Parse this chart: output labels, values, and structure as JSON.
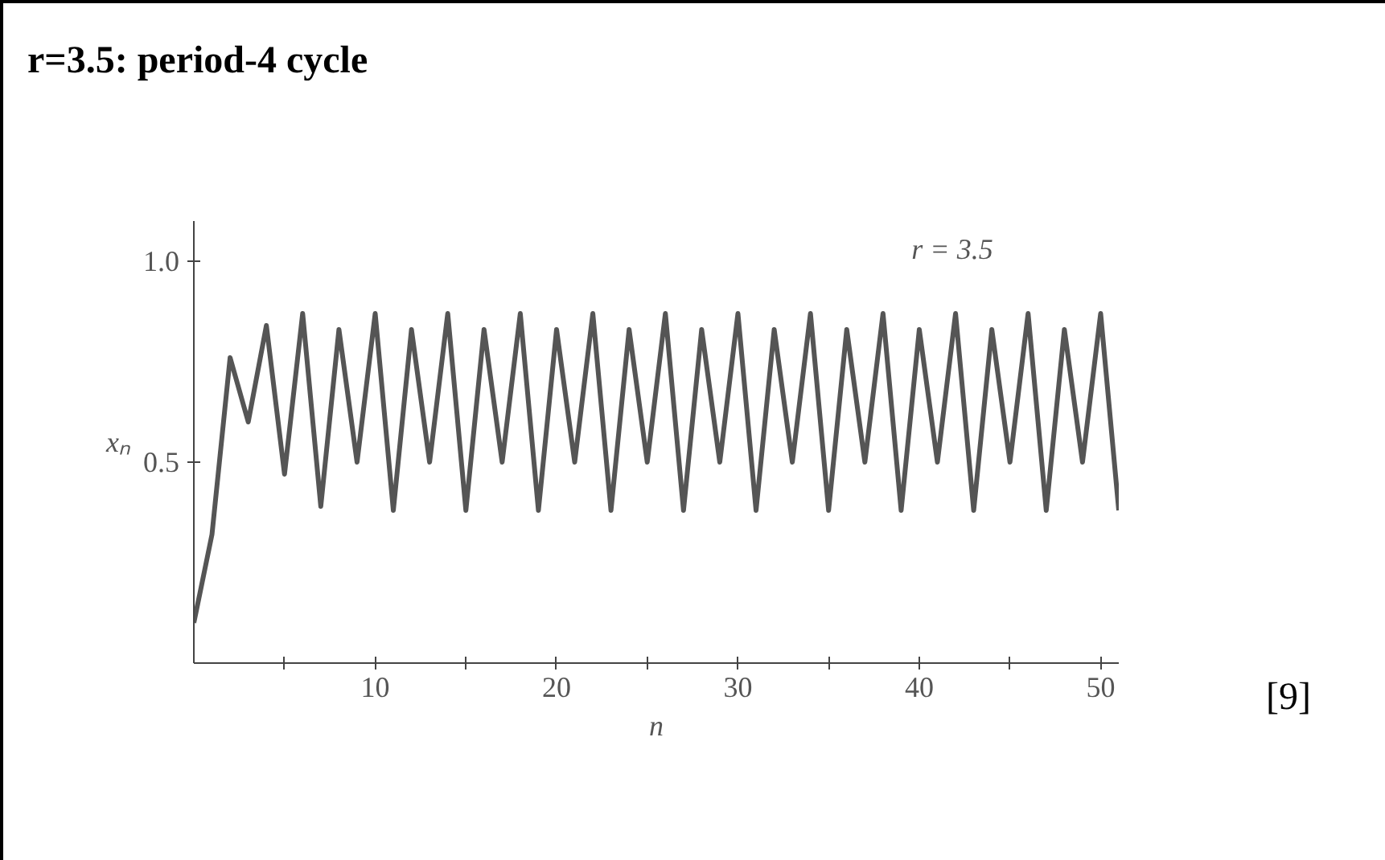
{
  "chart_data": {
    "type": "line",
    "title": "r=3.5: period-4 cycle",
    "xlabel": "n",
    "ylabel": "xₙ",
    "x": [
      0,
      1,
      2,
      3,
      4,
      5,
      6,
      7,
      8,
      9,
      10,
      11,
      12,
      13,
      14,
      15,
      16,
      17,
      18,
      19,
      20,
      21,
      22,
      23,
      24,
      25,
      26,
      27,
      28,
      29,
      30,
      31,
      32,
      33,
      34,
      35,
      36,
      37,
      38,
      39,
      40,
      41,
      42,
      43,
      44,
      45,
      46,
      47,
      48,
      49,
      50,
      51
    ],
    "series": [
      {
        "color": "#555555",
        "values": [
          0.1,
          0.32,
          0.76,
          0.6,
          0.84,
          0.47,
          0.87,
          0.39,
          0.83,
          0.5,
          0.87,
          0.38,
          0.83,
          0.5,
          0.87,
          0.38,
          0.83,
          0.5,
          0.87,
          0.38,
          0.83,
          0.5,
          0.87,
          0.38,
          0.83,
          0.5,
          0.87,
          0.38,
          0.83,
          0.5,
          0.87,
          0.38,
          0.83,
          0.5,
          0.87,
          0.38,
          0.83,
          0.5,
          0.87,
          0.38,
          0.83,
          0.5,
          0.87,
          0.38,
          0.83,
          0.5,
          0.87,
          0.38,
          0.83,
          0.5,
          0.87,
          0.38
        ]
      }
    ],
    "xlim": [
      0,
      51
    ],
    "ylim": [
      0,
      1.1
    ],
    "xticks": [
      {
        "value": 5,
        "label": null
      },
      10,
      {
        "value": 15,
        "label": null
      },
      20,
      {
        "value": 25,
        "label": null
      },
      30,
      {
        "value": 35,
        "label": null
      },
      40,
      {
        "value": 45,
        "label": null
      },
      50
    ],
    "yticks": [
      0.5,
      {
        "value": 1.0,
        "label": "1.0"
      }
    ],
    "annotations": [
      "r = 3.5",
      "[9]"
    ],
    "grid": false,
    "marker": "none",
    "line_style": "solid"
  }
}
